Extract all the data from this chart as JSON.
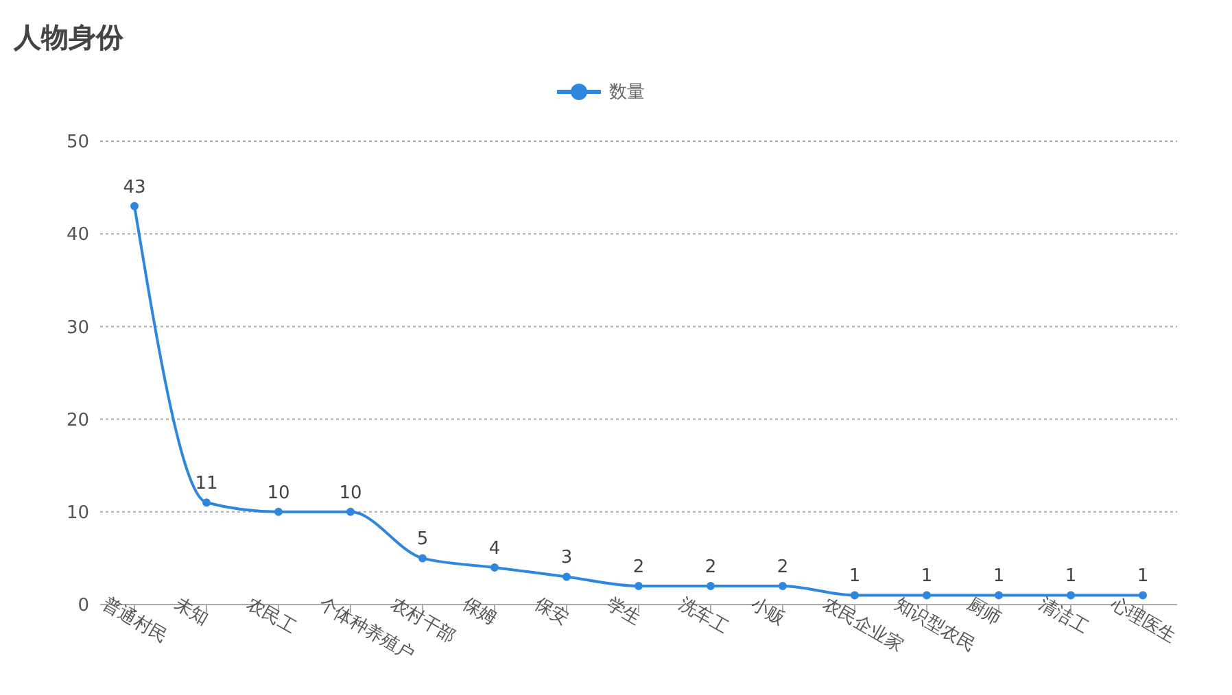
{
  "chart_data": {
    "type": "line",
    "title": "人物身份",
    "categories": [
      "普通村民",
      "未知",
      "农民工",
      "个体种养殖户",
      "农村干部",
      "保姆",
      "保安",
      "学生",
      "洗车工",
      "小贩",
      "农民企业家",
      "知识型农民",
      "厨师",
      "清洁工",
      "心理医生"
    ],
    "series": [
      {
        "name": "数量",
        "color": "#2e86de",
        "values": [
          43,
          11,
          10,
          10,
          5,
          4,
          3,
          2,
          2,
          2,
          1,
          1,
          1,
          1,
          1
        ]
      }
    ],
    "ylim": [
      0,
      50
    ],
    "yticks": [
      0,
      10,
      20,
      30,
      40,
      50
    ],
    "grid": "y",
    "legend": "top",
    "marker": "circle",
    "line_style": "solid",
    "data_labels": true
  }
}
